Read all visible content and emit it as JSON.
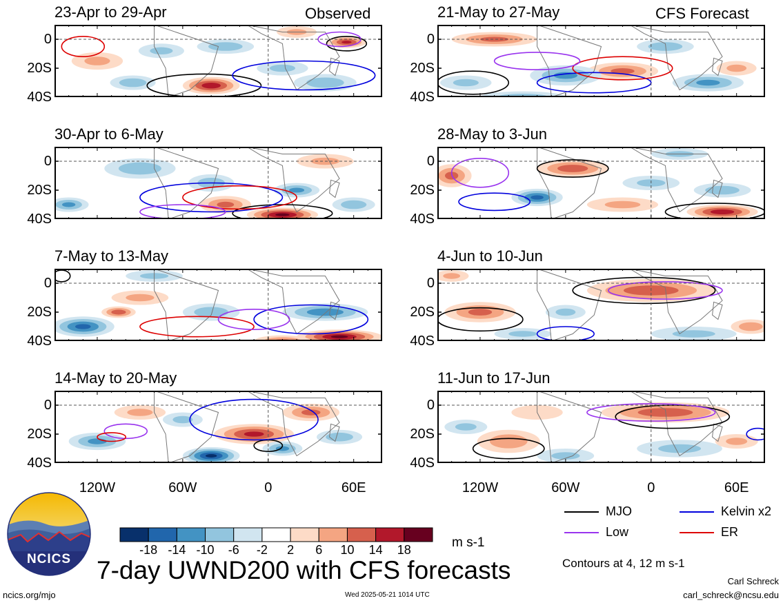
{
  "chart_data": {
    "type": "heatmap",
    "title": "7-day UWND200 with CFS forecasts",
    "column_labels": {
      "left": "Observed",
      "right": "CFS Forecast"
    },
    "y_tick_labels": [
      "0",
      "20S",
      "40S"
    ],
    "y_range": [
      10,
      -40
    ],
    "x_tick_labels": [
      "120W",
      "60W",
      "0",
      "60E"
    ],
    "x_range": [
      -150,
      80
    ],
    "panels": [
      {
        "name": "23-Apr to 29-Apr",
        "column": "left",
        "blobs": [
          [
            -40,
            -32,
            20,
            6,
            16
          ],
          [
            -95,
            -30,
            16,
            5,
            -8
          ],
          [
            55,
            -2,
            14,
            4,
            14
          ],
          [
            -30,
            -5,
            20,
            5,
            -8
          ],
          [
            10,
            -20,
            18,
            5,
            -6
          ],
          [
            40,
            -30,
            22,
            6,
            -8
          ],
          [
            -75,
            -8,
            16,
            5,
            -6
          ],
          [
            20,
            5,
            14,
            4,
            6
          ],
          [
            -120,
            -15,
            18,
            6,
            6
          ]
        ],
        "contours": [
          {
            "c": "#000000",
            "cx": -45,
            "cy": -32,
            "rx": 40,
            "ry": 8
          },
          {
            "c": "#000000",
            "cx": 55,
            "cy": -3,
            "rx": 14,
            "ry": 5
          },
          {
            "c": "#0000dd",
            "cx": 25,
            "cy": -25,
            "rx": 50,
            "ry": 10
          },
          {
            "c": "#dd0000",
            "cx": -130,
            "cy": -5,
            "rx": 15,
            "ry": 7
          },
          {
            "c": "#9933ee",
            "cx": 50,
            "cy": 0,
            "rx": 15,
            "ry": 5
          }
        ]
      },
      {
        "name": "30-Apr to 6-May",
        "column": "left",
        "blobs": [
          [
            10,
            -37,
            25,
            5,
            18
          ],
          [
            -30,
            -30,
            18,
            6,
            10
          ],
          [
            -90,
            -5,
            25,
            7,
            -8
          ],
          [
            -40,
            -15,
            16,
            6,
            -8
          ],
          [
            20,
            -20,
            16,
            5,
            -10
          ],
          [
            60,
            -30,
            15,
            5,
            -8
          ],
          [
            -140,
            -30,
            14,
            5,
            -10
          ],
          [
            40,
            0,
            20,
            5,
            6
          ]
        ],
        "contours": [
          {
            "c": "#000000",
            "cx": 10,
            "cy": -36,
            "rx": 35,
            "ry": 6
          },
          {
            "c": "#0000dd",
            "cx": -40,
            "cy": -25,
            "rx": 50,
            "ry": 10
          },
          {
            "c": "#dd0000",
            "cx": -20,
            "cy": -25,
            "rx": 40,
            "ry": 8
          },
          {
            "c": "#9933ee",
            "cx": -60,
            "cy": -35,
            "rx": 30,
            "ry": 5
          }
        ]
      },
      {
        "name": "7-May to 13-May",
        "column": "left",
        "blobs": [
          [
            50,
            -37,
            30,
            5,
            18
          ],
          [
            -130,
            -30,
            22,
            7,
            -14
          ],
          [
            -105,
            -20,
            12,
            4,
            12
          ],
          [
            40,
            -20,
            30,
            6,
            -12
          ],
          [
            -40,
            -20,
            20,
            6,
            -8
          ],
          [
            -90,
            -10,
            20,
            5,
            6
          ],
          [
            -80,
            5,
            20,
            4,
            -6
          ],
          [
            10,
            -40,
            20,
            4,
            10
          ]
        ],
        "contours": [
          {
            "c": "#000000",
            "cx": -145,
            "cy": 5,
            "rx": 6,
            "ry": 4
          },
          {
            "c": "#0000dd",
            "cx": 30,
            "cy": -25,
            "rx": 40,
            "ry": 10
          },
          {
            "c": "#dd0000",
            "cx": -50,
            "cy": -30,
            "rx": 40,
            "ry": 7
          },
          {
            "c": "#9933ee",
            "cx": -10,
            "cy": -25,
            "rx": 25,
            "ry": 7
          }
        ]
      },
      {
        "name": "14-May to 20-May",
        "column": "left",
        "blobs": [
          [
            -10,
            -20,
            28,
            7,
            14
          ],
          [
            -40,
            -35,
            20,
            6,
            -18
          ],
          [
            30,
            -5,
            20,
            6,
            10
          ],
          [
            -120,
            -25,
            20,
            6,
            -10
          ],
          [
            -90,
            -5,
            18,
            5,
            6
          ],
          [
            10,
            -30,
            14,
            5,
            -10
          ],
          [
            50,
            -22,
            16,
            5,
            -8
          ],
          [
            -60,
            -10,
            14,
            5,
            -6
          ]
        ],
        "contours": [
          {
            "c": "#000000",
            "cx": 0,
            "cy": -28,
            "rx": 10,
            "ry": 4
          },
          {
            "c": "#0000dd",
            "cx": -10,
            "cy": -10,
            "rx": 45,
            "ry": 14
          },
          {
            "c": "#9933ee",
            "cx": -100,
            "cy": -18,
            "rx": 15,
            "ry": 5
          },
          {
            "c": "#dd0000",
            "cx": -110,
            "cy": -22,
            "rx": 10,
            "ry": 3
          }
        ]
      },
      {
        "name": "21-May to 27-May",
        "column": "right",
        "blobs": [
          [
            -110,
            0,
            30,
            5,
            10
          ],
          [
            -20,
            -22,
            25,
            6,
            10
          ],
          [
            10,
            -5,
            20,
            5,
            -8
          ],
          [
            -60,
            -25,
            25,
            7,
            -10
          ],
          [
            40,
            -30,
            25,
            6,
            -10
          ],
          [
            -130,
            -30,
            18,
            5,
            -6
          ],
          [
            60,
            -20,
            14,
            5,
            6
          ],
          [
            -90,
            -40,
            30,
            4,
            -8
          ]
        ],
        "contours": [
          {
            "c": "#000000",
            "cx": -125,
            "cy": -30,
            "rx": 25,
            "ry": 8
          },
          {
            "c": "#0000dd",
            "cx": -40,
            "cy": -30,
            "rx": 40,
            "ry": 7
          },
          {
            "c": "#dd0000",
            "cx": -20,
            "cy": -20,
            "rx": 35,
            "ry": 8
          },
          {
            "c": "#9933ee",
            "cx": -80,
            "cy": -15,
            "rx": 30,
            "ry": 6
          }
        ]
      },
      {
        "name": "28-May to 3-Jun",
        "column": "right",
        "blobs": [
          [
            -55,
            -5,
            25,
            6,
            12
          ],
          [
            50,
            -35,
            25,
            5,
            16
          ],
          [
            -140,
            -10,
            14,
            8,
            10
          ],
          [
            -80,
            -25,
            18,
            6,
            -14
          ],
          [
            0,
            -15,
            20,
            5,
            -6
          ],
          [
            50,
            -20,
            20,
            5,
            -8
          ],
          [
            -20,
            -30,
            25,
            5,
            6
          ],
          [
            20,
            5,
            20,
            4,
            -6
          ]
        ],
        "contours": [
          {
            "c": "#000000",
            "cx": -55,
            "cy": -5,
            "rx": 25,
            "ry": 6
          },
          {
            "c": "#000000",
            "cx": 45,
            "cy": -35,
            "rx": 35,
            "ry": 6
          },
          {
            "c": "#0000dd",
            "cx": -110,
            "cy": -28,
            "rx": 25,
            "ry": 6
          },
          {
            "c": "#9933ee",
            "cx": -120,
            "cy": -8,
            "rx": 20,
            "ry": 10
          }
        ]
      },
      {
        "name": "4-Jun to 10-Jun",
        "column": "right",
        "blobs": [
          [
            0,
            -5,
            45,
            8,
            12
          ],
          [
            -120,
            -20,
            25,
            7,
            10
          ],
          [
            -90,
            -35,
            20,
            4,
            -6
          ],
          [
            30,
            -35,
            30,
            5,
            -6
          ],
          [
            -60,
            -20,
            14,
            5,
            -6
          ],
          [
            70,
            -30,
            14,
            5,
            8
          ],
          [
            -140,
            5,
            12,
            4,
            6
          ]
        ],
        "contours": [
          {
            "c": "#000000",
            "cx": -5,
            "cy": -5,
            "rx": 50,
            "ry": 9
          },
          {
            "c": "#000000",
            "cx": -120,
            "cy": -25,
            "rx": 30,
            "ry": 8
          },
          {
            "c": "#9933ee",
            "cx": 10,
            "cy": -5,
            "rx": 40,
            "ry": 6
          },
          {
            "c": "#0000dd",
            "cx": -60,
            "cy": -35,
            "rx": 20,
            "ry": 5
          }
        ]
      },
      {
        "name": "11-Jun to 17-Jun",
        "column": "right",
        "blobs": [
          [
            10,
            -5,
            45,
            7,
            12
          ],
          [
            -100,
            -25,
            22,
            8,
            8
          ],
          [
            -60,
            -35,
            20,
            5,
            -6
          ],
          [
            20,
            -30,
            30,
            6,
            -6
          ],
          [
            -130,
            -15,
            15,
            5,
            -6
          ],
          [
            60,
            -25,
            15,
            5,
            6
          ],
          [
            -80,
            -5,
            18,
            5,
            4
          ]
        ],
        "contours": [
          {
            "c": "#000000",
            "cx": 15,
            "cy": -8,
            "rx": 40,
            "ry": 8
          },
          {
            "c": "#000000",
            "cx": -100,
            "cy": -30,
            "rx": 25,
            "ry": 7
          },
          {
            "c": "#9933ee",
            "cx": 0,
            "cy": -5,
            "rx": 45,
            "ry": 6
          },
          {
            "c": "#0000dd",
            "cx": 75,
            "cy": -20,
            "rx": 8,
            "ry": 4
          }
        ]
      }
    ],
    "colorbar": {
      "colors": [
        "#08306b",
        "#2166ac",
        "#4393c3",
        "#92c5de",
        "#d1e5f0",
        "#ffffff",
        "#fddbc7",
        "#f4a582",
        "#d6604d",
        "#b2182b",
        "#67001f"
      ],
      "labels": [
        "-18",
        "-14",
        "-10",
        "-6",
        "-2",
        "2",
        "6",
        "10",
        "14",
        "18"
      ],
      "unit": "m s-1"
    },
    "legend": [
      {
        "label": "MJO",
        "color": "#000000"
      },
      {
        "label": "Kelvin x2",
        "color": "#0000dd"
      },
      {
        "label": "Low",
        "color": "#9933ee"
      },
      {
        "label": "ER",
        "color": "#dd0000"
      }
    ],
    "contour_note": "Contours at 4, 12 m s-1"
  },
  "footer": {
    "logo_text": "NCICS",
    "site": "ncics.org/mjo",
    "timestamp": "Wed 2025-05-21 1014 UTC",
    "author": "Carl Schreck",
    "email": "carl_schreck@ncsu.edu"
  }
}
